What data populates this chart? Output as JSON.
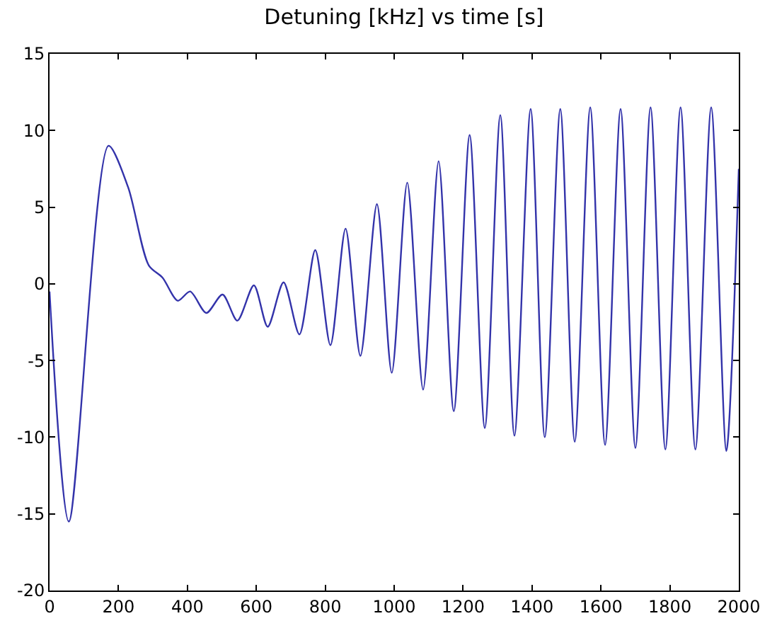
{
  "chart_data": {
    "type": "line",
    "title": "Detuning [kHz] vs time [s]",
    "x": [
      0,
      56,
      171,
      228,
      288,
      328,
      372,
      408,
      455,
      502,
      545,
      593,
      633,
      679,
      725,
      771,
      815,
      859,
      902,
      950,
      993,
      1038,
      1084,
      1129,
      1173,
      1219,
      1263,
      1308,
      1349,
      1396,
      1437,
      1482,
      1524,
      1569,
      1612,
      1657,
      1700,
      1744,
      1787,
      1831,
      1874,
      1920,
      1964,
      2000
    ],
    "series": [
      {
        "color": "#3333aa",
        "values": [
          -0.5,
          -15.5,
          9.0,
          6.3,
          1.2,
          0.4,
          -1.1,
          -0.5,
          -1.9,
          -0.7,
          -2.4,
          -0.1,
          -2.8,
          0.1,
          -3.3,
          2.2,
          -4.0,
          3.6,
          -4.7,
          5.2,
          -5.8,
          6.6,
          -6.9,
          8.0,
          -8.3,
          9.7,
          -9.4,
          11.0,
          -9.9,
          11.4,
          -10.0,
          11.4,
          -10.3,
          11.5,
          -10.5,
          11.4,
          -10.7,
          11.5,
          -10.8,
          11.5,
          -10.8,
          11.5,
          -10.9,
          7.5
        ]
      }
    ],
    "xlim": [
      0,
      2000
    ],
    "xticks": [
      0,
      200,
      400,
      600,
      800,
      1000,
      1200,
      1400,
      1600,
      1800,
      2000
    ],
    "ylim": [
      -20,
      15
    ],
    "yticks": [
      -20,
      -15,
      -10,
      -5,
      0,
      5,
      10,
      15
    ],
    "marker": "none",
    "line_style": "solid"
  }
}
